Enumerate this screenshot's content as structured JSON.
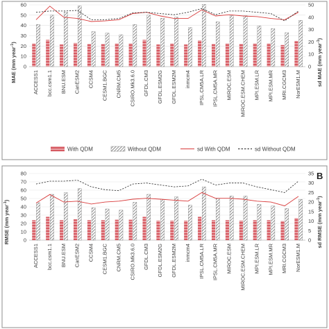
{
  "figure": {
    "legend_labels": {
      "with_qdm": "With QDM",
      "without_qdm": "Without QDM",
      "sd_with_qdm": "sd With QDM",
      "sd_without_qdm": "sd Without QDM"
    },
    "panels": [
      {
        "letter": "",
        "ylabel": "MAE",
        "ylabel_unit": "(mm year",
        "ylabel_right": "sd MAE",
        "ylabel_right_unit": "(mm year"
      },
      {
        "letter": "B",
        "ylabel": "RMSE",
        "ylabel_unit": "(mm year",
        "ylabel_right": "sd RMSE",
        "ylabel_right_unit": "(mm year"
      }
    ],
    "unit_superscript": "-1",
    "unit_close": ")"
  },
  "colors": {
    "with_qdm_fill": "#e8a0a4",
    "with_qdm_stripe": "#d65a62",
    "without_qdm_fill": "#ffffff",
    "without_qdm_hatch": "#707070",
    "sd_with_line": "#d93a3a",
    "sd_without_line": "#222222"
  },
  "chart_data": [
    {
      "type": "bar",
      "categories": [
        "ACCESS1",
        "bcc.csm1.1",
        "BNU.ESM",
        "CanESM2",
        "CCSM4",
        "CESM1.BGC",
        "CNRM.CM5",
        "CSIRO.Mk3.6.0",
        "GFDL.CM3",
        "GFDL.ESM2G",
        "GFDL.ESM2M",
        "inmcm4",
        "IPSL.CM5A.LR",
        "IPSL.CM5A.MR",
        "MIROC.ESM",
        "MIROC.ESM.CHEM",
        "MPI.ESM.LR",
        "MPI.ESM.MR",
        "MRI.CGCM3",
        "NorESM1.M"
      ],
      "ylabel": "MAE (mm year-1)",
      "ylabel_right": "sd MAE (mm year-1)",
      "ylim": [
        0,
        60
      ],
      "yticks": [
        0,
        10,
        20,
        30,
        40,
        50,
        60
      ],
      "ylim_right": [
        0,
        50
      ],
      "yticks_right": [
        0,
        10,
        20,
        30,
        40,
        50
      ],
      "grid": true,
      "legend": "bottom",
      "series": [
        {
          "name": "With QDM",
          "kind": "bar",
          "axis": "left",
          "values": [
            22.5,
            26,
            21.5,
            23,
            22,
            22,
            22.5,
            22.5,
            26,
            21.5,
            22.5,
            21.5,
            25.5,
            22,
            22.5,
            22,
            22.5,
            22.5,
            21,
            25
          ]
        },
        {
          "name": "Without QDM",
          "kind": "bar",
          "axis": "left",
          "values": [
            41,
            50,
            53,
            59,
            34,
            32.5,
            31,
            41,
            50,
            47,
            48,
            38,
            60.5,
            43.5,
            49.5,
            49.5,
            39.5,
            37,
            33,
            45
          ]
        },
        {
          "name": "sd With QDM",
          "kind": "line",
          "axis": "right",
          "values": [
            38,
            49,
            40,
            39,
            36.5,
            37,
            38,
            43,
            44,
            41,
            39,
            39,
            46,
            41,
            42,
            41,
            40.5,
            39,
            38,
            44
          ]
        },
        {
          "name": "sd Without QDM",
          "kind": "line",
          "axis": "right",
          "values": [
            44,
            45,
            45,
            45.5,
            38,
            38,
            39,
            43.5,
            44,
            43,
            42,
            44,
            47,
            42,
            45,
            45,
            44,
            43,
            37,
            45
          ]
        }
      ]
    },
    {
      "type": "bar",
      "categories": [
        "ACCESS1",
        "bcc.csm1.1",
        "BNU.ESM",
        "CanESM2",
        "CCSM4",
        "CESM1.BGC",
        "CNRM.CM5",
        "CSIRO.Mk3.6.0",
        "GFDL.CM3",
        "GFDL.ESM2G",
        "GFDL.ESM2M",
        "inmcm4",
        "IPSL.CM5A.LR",
        "IPSL.CM5A.MR",
        "MIROC.ESM",
        "MIROC.ESM.CHEM",
        "MPI.ESM.LR",
        "MPI.ESM.MR",
        "MRI.CGCM3",
        "NorESM1.M"
      ],
      "ylabel": "RMSE (mm year-1)",
      "ylabel_right": "sd RMSE (mm year-1)",
      "ylim": [
        0,
        80
      ],
      "yticks": [
        0,
        10,
        20,
        30,
        40,
        50,
        60,
        70,
        80
      ],
      "ylim_right": [
        0,
        35
      ],
      "yticks_right": [
        0,
        5,
        10,
        15,
        20,
        25,
        30,
        35
      ],
      "grid": true,
      "legend": "none",
      "series": [
        {
          "name": "With QDM",
          "kind": "bar",
          "axis": "left",
          "values": [
            24,
            28,
            24,
            25,
            24,
            24,
            24.5,
            24.5,
            28,
            23.5,
            23.5,
            23.5,
            28,
            24,
            24,
            23.5,
            24,
            24,
            23,
            26.5
          ]
        },
        {
          "name": "Without QDM",
          "kind": "bar",
          "axis": "left",
          "values": [
            45,
            55,
            57,
            62,
            39,
            37.5,
            36,
            45.5,
            55,
            49,
            52,
            42,
            64,
            50,
            53,
            53,
            43,
            41,
            38,
            49
          ]
        },
        {
          "name": "sd With QDM",
          "kind": "line",
          "axis": "right",
          "values": [
            19.5,
            24,
            20,
            20.5,
            19,
            20,
            20.5,
            21.5,
            22,
            21.5,
            21,
            20.5,
            25,
            22,
            22,
            21.5,
            20.5,
            20,
            18,
            23
          ]
        },
        {
          "name": "sd Without QDM",
          "kind": "line",
          "axis": "right",
          "values": [
            29.5,
            31,
            31,
            31.5,
            28,
            26.5,
            26,
            29.5,
            30,
            29,
            28,
            28.5,
            32,
            29,
            30,
            30,
            28,
            26.5,
            25,
            31
          ]
        }
      ]
    }
  ]
}
